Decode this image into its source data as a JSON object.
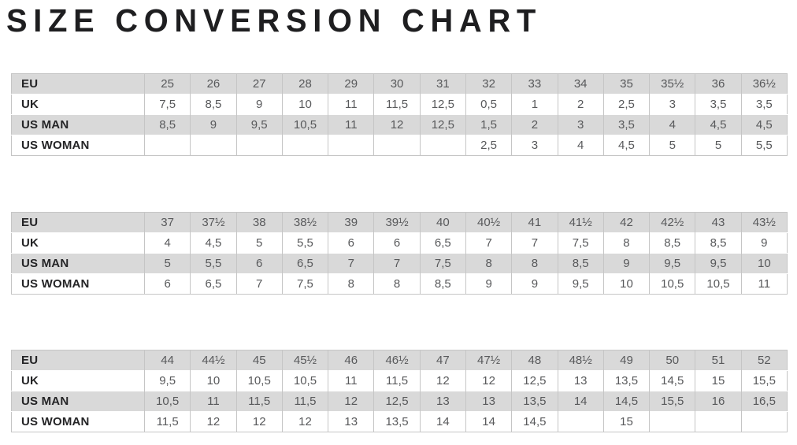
{
  "page": {
    "title": "SIZE CONVERSION CHART"
  },
  "colors": {
    "title_text": "#1e1e20",
    "shaded_row_background": "#d9d9d9",
    "plain_row_background": "#ffffff",
    "grid_line": "#c5c5c5",
    "value_text": "#58595b",
    "label_text": "#242426"
  },
  "chart_data": [
    {
      "type": "table",
      "row_header_labels": [
        "EU",
        "UK",
        "US MAN",
        "US WOMAN"
      ],
      "rows": [
        {
          "label": "EU",
          "values": [
            "25",
            "26",
            "27",
            "28",
            "29",
            "30",
            "31",
            "32",
            "33",
            "34",
            "35",
            "35½",
            "36",
            "36½"
          ]
        },
        {
          "label": "UK",
          "values": [
            "7,5",
            "8,5",
            "9",
            "10",
            "11",
            "11,5",
            "12,5",
            "0,5",
            "1",
            "2",
            "2,5",
            "3",
            "3,5",
            "3,5"
          ]
        },
        {
          "label": "US MAN",
          "values": [
            "8,5",
            "9",
            "9,5",
            "10,5",
            "11",
            "12",
            "12,5",
            "1,5",
            "2",
            "3",
            "3,5",
            "4",
            "4,5",
            "4,5"
          ]
        },
        {
          "label": "US WOMAN",
          "values": [
            "",
            "",
            "",
            "",
            "",
            "",
            "",
            "2,5",
            "3",
            "4",
            "4,5",
            "5",
            "5",
            "5,5"
          ]
        }
      ]
    },
    {
      "type": "table",
      "row_header_labels": [
        "EU",
        "UK",
        "US MAN",
        "US WOMAN"
      ],
      "rows": [
        {
          "label": "EU",
          "values": [
            "37",
            "37½",
            "38",
            "38½",
            "39",
            "39½",
            "40",
            "40½",
            "41",
            "41½",
            "42",
            "42½",
            "43",
            "43½"
          ]
        },
        {
          "label": "UK",
          "values": [
            "4",
            "4,5",
            "5",
            "5,5",
            "6",
            "6",
            "6,5",
            "7",
            "7",
            "7,5",
            "8",
            "8,5",
            "8,5",
            "9"
          ]
        },
        {
          "label": "US MAN",
          "values": [
            "5",
            "5,5",
            "6",
            "6,5",
            "7",
            "7",
            "7,5",
            "8",
            "8",
            "8,5",
            "9",
            "9,5",
            "9,5",
            "10"
          ]
        },
        {
          "label": "US WOMAN",
          "values": [
            "6",
            "6,5",
            "7",
            "7,5",
            "8",
            "8",
            "8,5",
            "9",
            "9",
            "9,5",
            "10",
            "10,5",
            "10,5",
            "11"
          ]
        }
      ]
    },
    {
      "type": "table",
      "row_header_labels": [
        "EU",
        "UK",
        "US MAN",
        "US WOMAN"
      ],
      "rows": [
        {
          "label": "EU",
          "values": [
            "44",
            "44½",
            "45",
            "45½",
            "46",
            "46½",
            "47",
            "47½",
            "48",
            "48½",
            "49",
            "50",
            "51",
            "52"
          ]
        },
        {
          "label": "UK",
          "values": [
            "9,5",
            "10",
            "10,5",
            "10,5",
            "11",
            "11,5",
            "12",
            "12",
            "12,5",
            "13",
            "13,5",
            "14,5",
            "15",
            "15,5"
          ]
        },
        {
          "label": "US MAN",
          "values": [
            "10,5",
            "11",
            "11,5",
            "11,5",
            "12",
            "12,5",
            "13",
            "13",
            "13,5",
            "14",
            "14,5",
            "15,5",
            "16",
            "16,5"
          ]
        },
        {
          "label": "US WOMAN",
          "values": [
            "11,5",
            "12",
            "12",
            "12",
            "13",
            "13,5",
            "14",
            "14",
            "14,5",
            "",
            "15",
            "",
            "",
            ""
          ]
        }
      ]
    }
  ]
}
